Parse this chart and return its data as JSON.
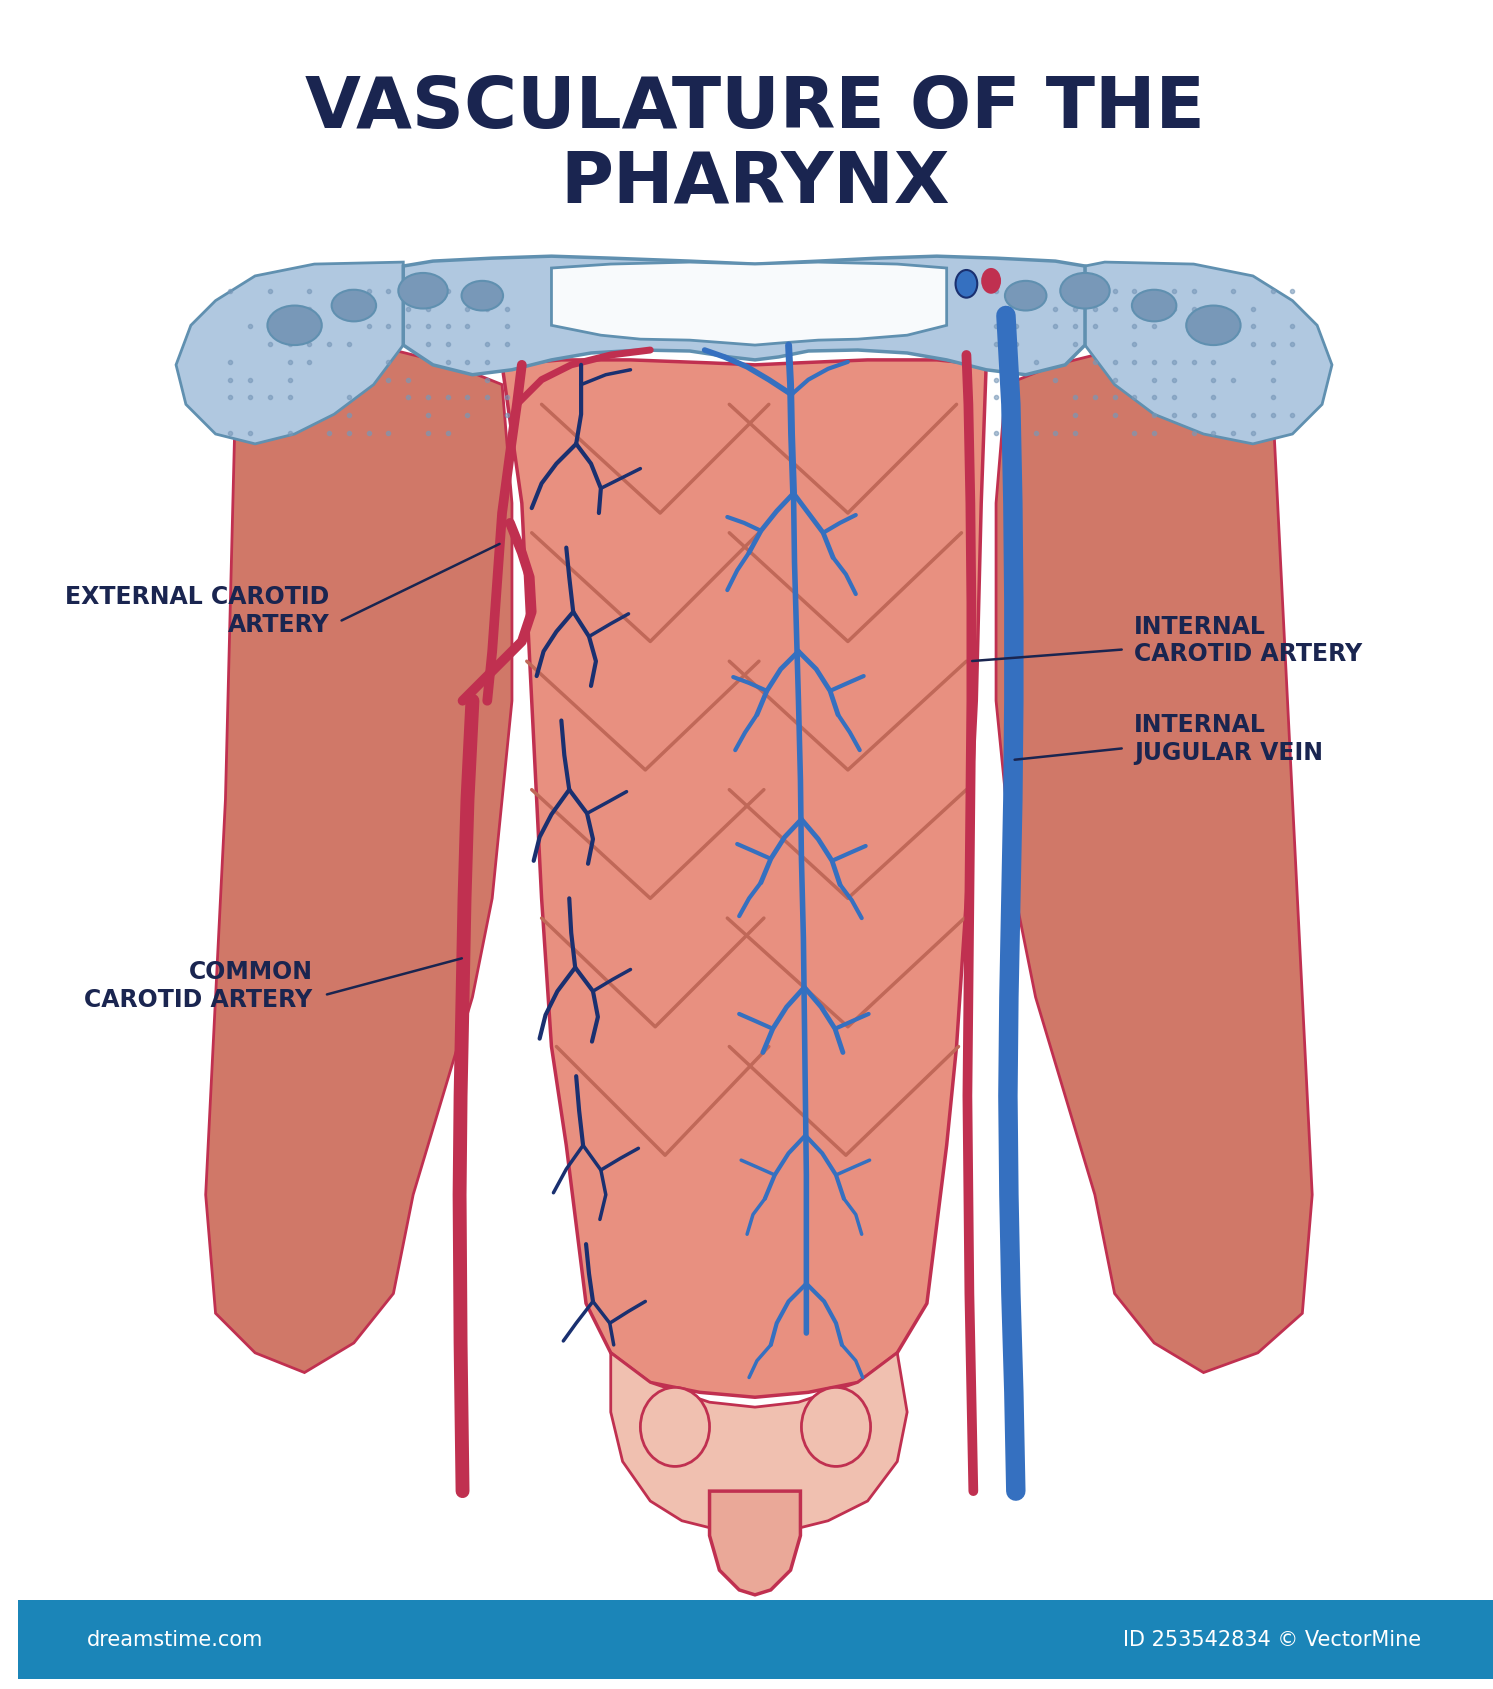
{
  "title_line1": "VASCULATURE OF THE",
  "title_line2": "PHARYNX",
  "title_color": "#1a2550",
  "title_fontsize": 52,
  "bg_color": "#ffffff",
  "footer_color": "#1b85b8",
  "footer_text_left": "dreamstime.com",
  "footer_text_right": "ID 253542834 © VectorMine",
  "label_ext_carotid": "EXTERNAL CAROTID\nARTERY",
  "label_common_carotid": "COMMON\nCAROTID ARTERY",
  "label_int_carotid": "INTERNAL\nCAROTID ARTERY",
  "label_int_jugular": "INTERNAL\nJUGULAR VEIN",
  "label_fontsize": 17,
  "label_color": "#1a2550",
  "artery_color": "#c03050",
  "artery_fill": "#d06070",
  "vein_color": "#3570c0",
  "small_vessel_color": "#1a3070",
  "pharynx_fill": "#e89080",
  "pharynx_outline": "#c03050",
  "muscle_fill": "#d07868",
  "muscle_light": "#e8a898",
  "bone_fill": "#b0c8e0",
  "bone_outline": "#6090b0",
  "bone_spot": "#7898b8",
  "white_fill": "#f8fafc",
  "larynx_fill": "#eaa898",
  "lower_fill": "#f0c0b0"
}
